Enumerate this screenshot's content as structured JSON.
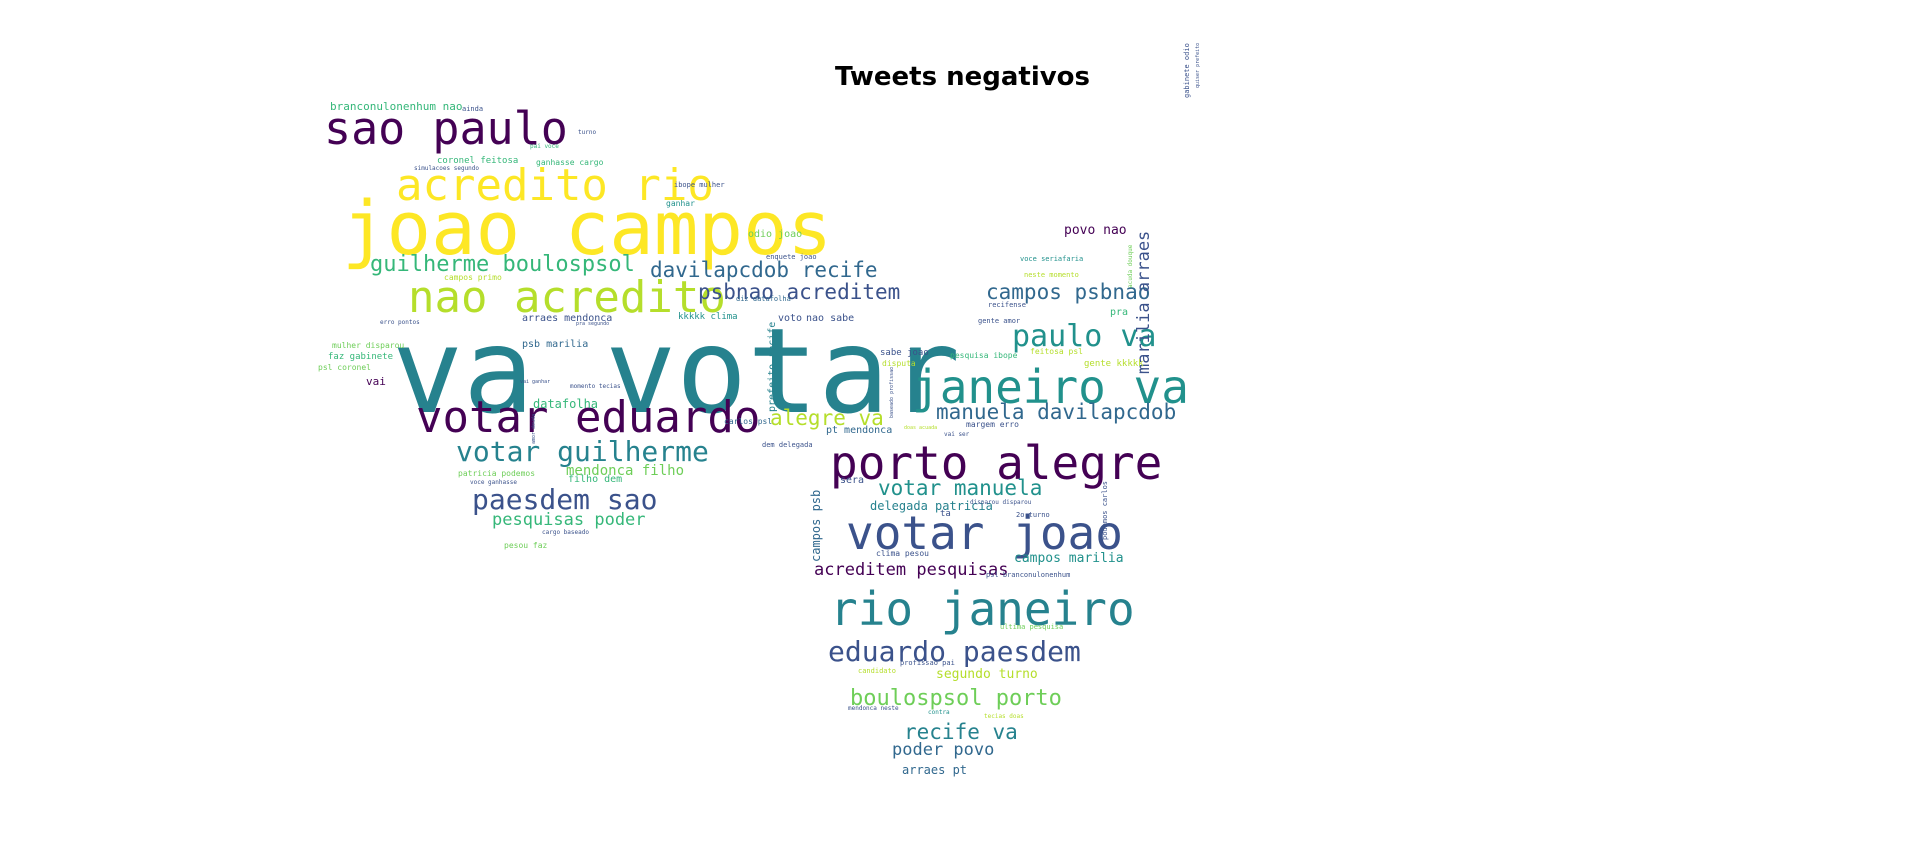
{
  "title": "Tweets negativos",
  "colors": {
    "purple": "#440154",
    "indigo": "#3b528b",
    "blue": "#31688e",
    "teal": "#26828e",
    "green": "#21918c",
    "seagreen": "#35b779",
    "lime": "#6ece58",
    "chartreuse": "#b5de2b",
    "yellow": "#fde725"
  },
  "words": [
    {
      "text": "va votar",
      "color": "teal"
    },
    {
      "text": "joao campos",
      "color": "yellow"
    },
    {
      "text": "sao paulo",
      "color": "purple"
    },
    {
      "text": "acredito rio",
      "color": "yellow"
    },
    {
      "text": "nao acredito",
      "color": "chartreuse"
    },
    {
      "text": "votar eduardo",
      "color": "purple"
    },
    {
      "text": "porto alegre",
      "color": "purple"
    },
    {
      "text": "janeiro va",
      "color": "green"
    },
    {
      "text": "votar joao",
      "color": "indigo"
    },
    {
      "text": "rio janeiro",
      "color": "teal"
    },
    {
      "text": "votar guilherme",
      "color": "teal"
    },
    {
      "text": "paesdem sao",
      "color": "indigo"
    },
    {
      "text": "guilherme boulospsol",
      "color": "seagreen"
    },
    {
      "text": "davilapcdob recife",
      "color": "blue"
    },
    {
      "text": "psbnao acreditem",
      "color": "indigo"
    },
    {
      "text": "paulo va",
      "color": "green"
    },
    {
      "text": "campos psbnao",
      "color": "blue"
    },
    {
      "text": "manuela davilapcdob",
      "color": "blue"
    },
    {
      "text": "eduardo paesdem",
      "color": "indigo"
    },
    {
      "text": "boulospsol porto",
      "color": "lime"
    },
    {
      "text": "votar manuela",
      "color": "green"
    },
    {
      "text": "acreditem pesquisas",
      "color": "purple"
    },
    {
      "text": "recife va",
      "color": "teal"
    },
    {
      "text": "poder povo",
      "color": "blue"
    },
    {
      "text": "alegre va",
      "color": "chartreuse"
    },
    {
      "text": "pesquisas poder",
      "color": "seagreen"
    },
    {
      "text": "mendonca filho",
      "color": "lime"
    },
    {
      "text": "marilia arraes",
      "color": "indigo"
    },
    {
      "text": "segundo turno",
      "color": "chartreuse"
    },
    {
      "text": "campos marilia",
      "color": "green"
    },
    {
      "text": "delegada patricia",
      "color": "teal"
    },
    {
      "text": "povo nao",
      "color": "purple"
    },
    {
      "text": "datafolha",
      "color": "seagreen"
    },
    {
      "text": "arraes pt",
      "color": "blue"
    },
    {
      "text": "campos psb",
      "color": "blue"
    },
    {
      "text": "prefeito recife",
      "color": "teal"
    },
    {
      "text": "branconulonenhum nao",
      "color": "seagreen"
    },
    {
      "text": "coronel feitosa",
      "color": "seagreen"
    },
    {
      "text": "odio joao",
      "color": "lime"
    },
    {
      "text": "arraes mendonca",
      "color": "indigo"
    },
    {
      "text": "psb marilia",
      "color": "blue"
    },
    {
      "text": "faz gabinete",
      "color": "seagreen"
    },
    {
      "text": "vai",
      "color": "purple"
    },
    {
      "text": "pt mendonca",
      "color": "blue"
    },
    {
      "text": "sera",
      "color": "indigo"
    },
    {
      "text": "voto",
      "color": "indigo"
    },
    {
      "text": "nao sabe",
      "color": "indigo"
    },
    {
      "text": "sabe joao",
      "color": "indigo"
    },
    {
      "text": "pesquisa ibope",
      "color": "seagreen"
    },
    {
      "text": "gente kkkkk",
      "color": "chartreuse"
    },
    {
      "text": "pra",
      "color": "seagreen"
    },
    {
      "text": "margem erro",
      "color": "indigo"
    },
    {
      "text": "kkkkk clima",
      "color": "green"
    },
    {
      "text": "mulher disparou",
      "color": "lime"
    },
    {
      "text": "psl coronel",
      "color": "lime"
    },
    {
      "text": "ganhasse cargo",
      "color": "seagreen"
    },
    {
      "text": "filho dem",
      "color": "seagreen"
    },
    {
      "text": "patricia podemos",
      "color": "lime"
    },
    {
      "text": "pesou faz",
      "color": "lime"
    },
    {
      "text": "carlos psl",
      "color": "blue"
    },
    {
      "text": "dem delegada",
      "color": "indigo"
    },
    {
      "text": "ibope mulher",
      "color": "indigo"
    },
    {
      "text": "ganhar",
      "color": "green"
    },
    {
      "text": "enquete joao",
      "color": "indigo"
    },
    {
      "text": "campos primo",
      "color": "chartreuse"
    },
    {
      "text": "diz datafolha",
      "color": "blue"
    },
    {
      "text": "recifense",
      "color": "indigo"
    },
    {
      "text": "gente amor",
      "color": "indigo"
    },
    {
      "text": "feitosa psl",
      "color": "chartreuse"
    },
    {
      "text": "disputa",
      "color": "chartreuse"
    },
    {
      "text": "voce seriafaria",
      "color": "green"
    },
    {
      "text": "neste momento",
      "color": "chartreuse"
    },
    {
      "text": "2o turno",
      "color": "indigo"
    },
    {
      "text": "clima pesou",
      "color": "indigo"
    },
    {
      "text": "psl branconulonenhum",
      "color": "indigo"
    },
    {
      "text": "ultima pesquisa",
      "color": "lime"
    },
    {
      "text": "profissao pai",
      "color": "indigo"
    },
    {
      "text": "candidato",
      "color": "chartreuse"
    },
    {
      "text": "mendonca neste",
      "color": "indigo"
    },
    {
      "text": "contra",
      "color": "green"
    },
    {
      "text": "tecias doas",
      "color": "chartreuse"
    },
    {
      "text": "podemos carlos",
      "color": "indigo"
    },
    {
      "text": "gabinete odio",
      "color": "indigo"
    },
    {
      "text": "quiser prefeito",
      "color": "indigo"
    },
    {
      "text": "simulacoes segundo",
      "color": "indigo"
    },
    {
      "text": "pai voce",
      "color": "seagreen"
    },
    {
      "text": "ainda",
      "color": "indigo"
    },
    {
      "text": "voce ganhasse",
      "color": "indigo"
    },
    {
      "text": "cargo baseado",
      "color": "indigo"
    },
    {
      "text": "momento tecias",
      "color": "indigo"
    },
    {
      "text": "erro pontos",
      "color": "indigo"
    },
    {
      "text": "vai ganhar",
      "color": "indigo"
    },
    {
      "text": "vai ser",
      "color": "indigo"
    },
    {
      "text": "amor douda",
      "color": "indigo"
    },
    {
      "text": "doas acuada",
      "color": "chartreuse"
    },
    {
      "text": "baseado profissao",
      "color": "indigo"
    },
    {
      "text": "disparou disparou",
      "color": "indigo"
    },
    {
      "text": "acuda douque",
      "color": "lime"
    },
    {
      "text": "ta",
      "color": "indigo"
    },
    {
      "text": "pra segundo",
      "color": "indigo"
    },
    {
      "text": "turno",
      "color": "indigo"
    }
  ]
}
